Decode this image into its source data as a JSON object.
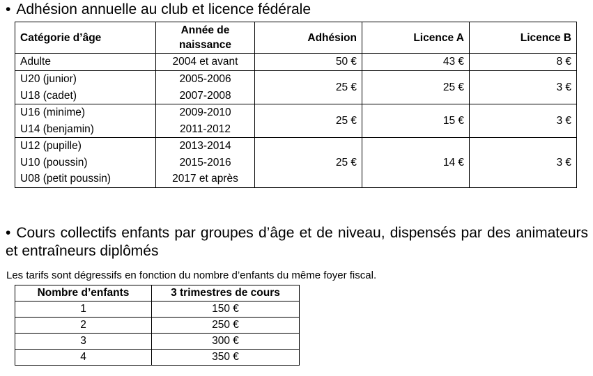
{
  "section1": {
    "bullet": "•",
    "title": "Adhésion annuelle au club et licence fédérale"
  },
  "table1": {
    "headers": {
      "category": "Catégorie d’âge",
      "year_line1": "Année de",
      "year_line2": "naissance",
      "adhesion": "Adhésion",
      "licence_a": "Licence A",
      "licence_b": "Licence B"
    },
    "rows": [
      {
        "categories": [
          "Adulte"
        ],
        "years": [
          "2004 et avant"
        ],
        "adhesion": "50 €",
        "licence_a": "43 €",
        "licence_b": "8 €"
      },
      {
        "categories": [
          "U20 (junior)",
          "U18 (cadet)"
        ],
        "years": [
          "2005-2006",
          "2007-2008"
        ],
        "adhesion": "25 €",
        "licence_a": "25 €",
        "licence_b": "3 €"
      },
      {
        "categories": [
          "U16 (minime)",
          "U14 (benjamin)"
        ],
        "years": [
          "2009-2010",
          "2011-2012"
        ],
        "adhesion": "25 €",
        "licence_a": "15 €",
        "licence_b": "3 €"
      },
      {
        "categories": [
          "U12 (pupille)",
          "U10 (poussin)",
          "U08 (petit poussin)"
        ],
        "years": [
          "2013-2014",
          "2015-2016",
          "2017 et après"
        ],
        "adhesion": "25 €",
        "licence_a": "14 €",
        "licence_b": "3 €"
      }
    ]
  },
  "section2": {
    "bullet": "•",
    "title": "Cours collectifs enfants par groupes d’âge et de niveau, dispensés par des animateurs et entraîneurs diplômés",
    "note": "Les tarifs sont dégressifs en fonction du nombre d’enfants du même foyer fiscal."
  },
  "table2": {
    "headers": {
      "children": "Nombre d’enfants",
      "price": "3 trimestres de cours"
    },
    "rows": [
      {
        "children": "1",
        "price": "150 €"
      },
      {
        "children": "2",
        "price": "250 €"
      },
      {
        "children": "3",
        "price": "300 €"
      },
      {
        "children": "4",
        "price": "350 €"
      }
    ]
  }
}
